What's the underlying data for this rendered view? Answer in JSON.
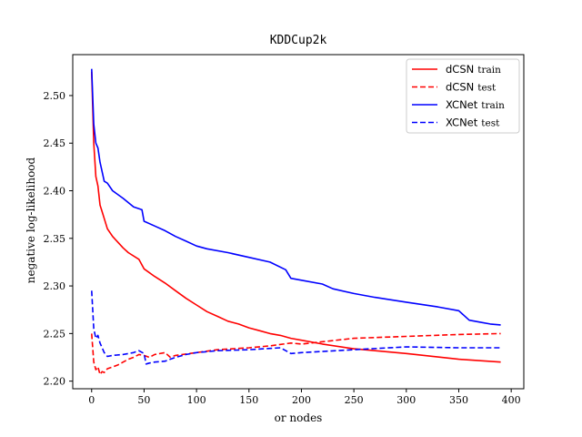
{
  "chart_data": {
    "type": "line",
    "title": "KDDCup2k",
    "xlabel": "or nodes",
    "ylabel": "negative log-likelihood",
    "xlim": [
      -18,
      412
    ],
    "ylim": [
      2.192,
      2.543
    ],
    "xticks": [
      0,
      50,
      100,
      150,
      200,
      250,
      300,
      350,
      400
    ],
    "yticks": [
      2.2,
      2.25,
      2.3,
      2.35,
      2.4,
      2.45,
      2.5
    ],
    "xtick_labels": [
      "0",
      "50",
      "100",
      "150",
      "200",
      "250",
      "300",
      "350",
      "400"
    ],
    "ytick_labels": [
      "2.20",
      "2.25",
      "2.30",
      "2.35",
      "2.40",
      "2.45",
      "2.50"
    ],
    "grid": false,
    "legend_position": "top-right",
    "series": [
      {
        "name": "dCSN train",
        "legend_main": "dCSN",
        "legend_sub": "train",
        "color": "#ff0000",
        "dash": "solid",
        "x": [
          0,
          2,
          4,
          6,
          8,
          10,
          15,
          20,
          30,
          35,
          45,
          50,
          60,
          70,
          80,
          90,
          100,
          110,
          120,
          130,
          140,
          150,
          160,
          170,
          180,
          190,
          200,
          220,
          250,
          300,
          350,
          390
        ],
        "y": [
          2.525,
          2.45,
          2.415,
          2.405,
          2.385,
          2.378,
          2.36,
          2.352,
          2.34,
          2.335,
          2.328,
          2.318,
          2.31,
          2.303,
          2.295,
          2.287,
          2.28,
          2.273,
          2.268,
          2.263,
          2.26,
          2.256,
          2.253,
          2.25,
          2.248,
          2.245,
          2.243,
          2.239,
          2.234,
          2.229,
          2.223,
          2.22
        ]
      },
      {
        "name": "dCSN test",
        "legend_main": "dCSN",
        "legend_sub": "test",
        "color": "#ff0000",
        "dash": "dashed",
        "x": [
          0,
          2,
          4,
          6,
          8,
          10,
          12,
          15,
          20,
          25,
          30,
          35,
          40,
          45,
          50,
          55,
          60,
          70,
          75,
          80,
          100,
          120,
          150,
          170,
          190,
          200,
          250,
          300,
          350,
          390
        ],
        "y": [
          2.25,
          2.22,
          2.212,
          2.215,
          2.207,
          2.21,
          2.209,
          2.213,
          2.215,
          2.217,
          2.22,
          2.223,
          2.225,
          2.228,
          2.227,
          2.225,
          2.228,
          2.23,
          2.225,
          2.227,
          2.23,
          2.233,
          2.235,
          2.237,
          2.24,
          2.239,
          2.245,
          2.247,
          2.249,
          2.25
        ]
      },
      {
        "name": "XCNet train",
        "legend_main": "XCNet",
        "legend_sub": "train",
        "color": "#0000ff",
        "dash": "solid",
        "x": [
          0,
          2,
          4,
          6,
          8,
          10,
          12,
          15,
          20,
          30,
          40,
          48,
          50,
          60,
          70,
          80,
          90,
          100,
          110,
          130,
          150,
          170,
          185,
          190,
          200,
          220,
          230,
          250,
          270,
          300,
          330,
          350,
          360,
          370,
          380,
          390
        ],
        "y": [
          2.528,
          2.47,
          2.45,
          2.445,
          2.43,
          2.42,
          2.41,
          2.408,
          2.4,
          2.392,
          2.383,
          2.38,
          2.368,
          2.363,
          2.358,
          2.352,
          2.347,
          2.342,
          2.339,
          2.335,
          2.33,
          2.325,
          2.317,
          2.308,
          2.306,
          2.302,
          2.297,
          2.292,
          2.288,
          2.283,
          2.278,
          2.274,
          2.264,
          2.262,
          2.26,
          2.259
        ]
      },
      {
        "name": "XCNet test",
        "legend_main": "XCNet",
        "legend_sub": "test",
        "color": "#0000ff",
        "dash": "dashed",
        "x": [
          0,
          2,
          4,
          6,
          8,
          10,
          12,
          15,
          20,
          30,
          40,
          45,
          50,
          52,
          55,
          60,
          70,
          80,
          90,
          100,
          120,
          150,
          180,
          190,
          200,
          250,
          300,
          350,
          390
        ],
        "y": [
          2.295,
          2.255,
          2.245,
          2.248,
          2.24,
          2.235,
          2.23,
          2.226,
          2.227,
          2.228,
          2.23,
          2.232,
          2.229,
          2.218,
          2.219,
          2.22,
          2.221,
          2.225,
          2.228,
          2.23,
          2.232,
          2.233,
          2.235,
          2.229,
          2.23,
          2.233,
          2.236,
          2.235,
          2.235
        ]
      }
    ]
  }
}
